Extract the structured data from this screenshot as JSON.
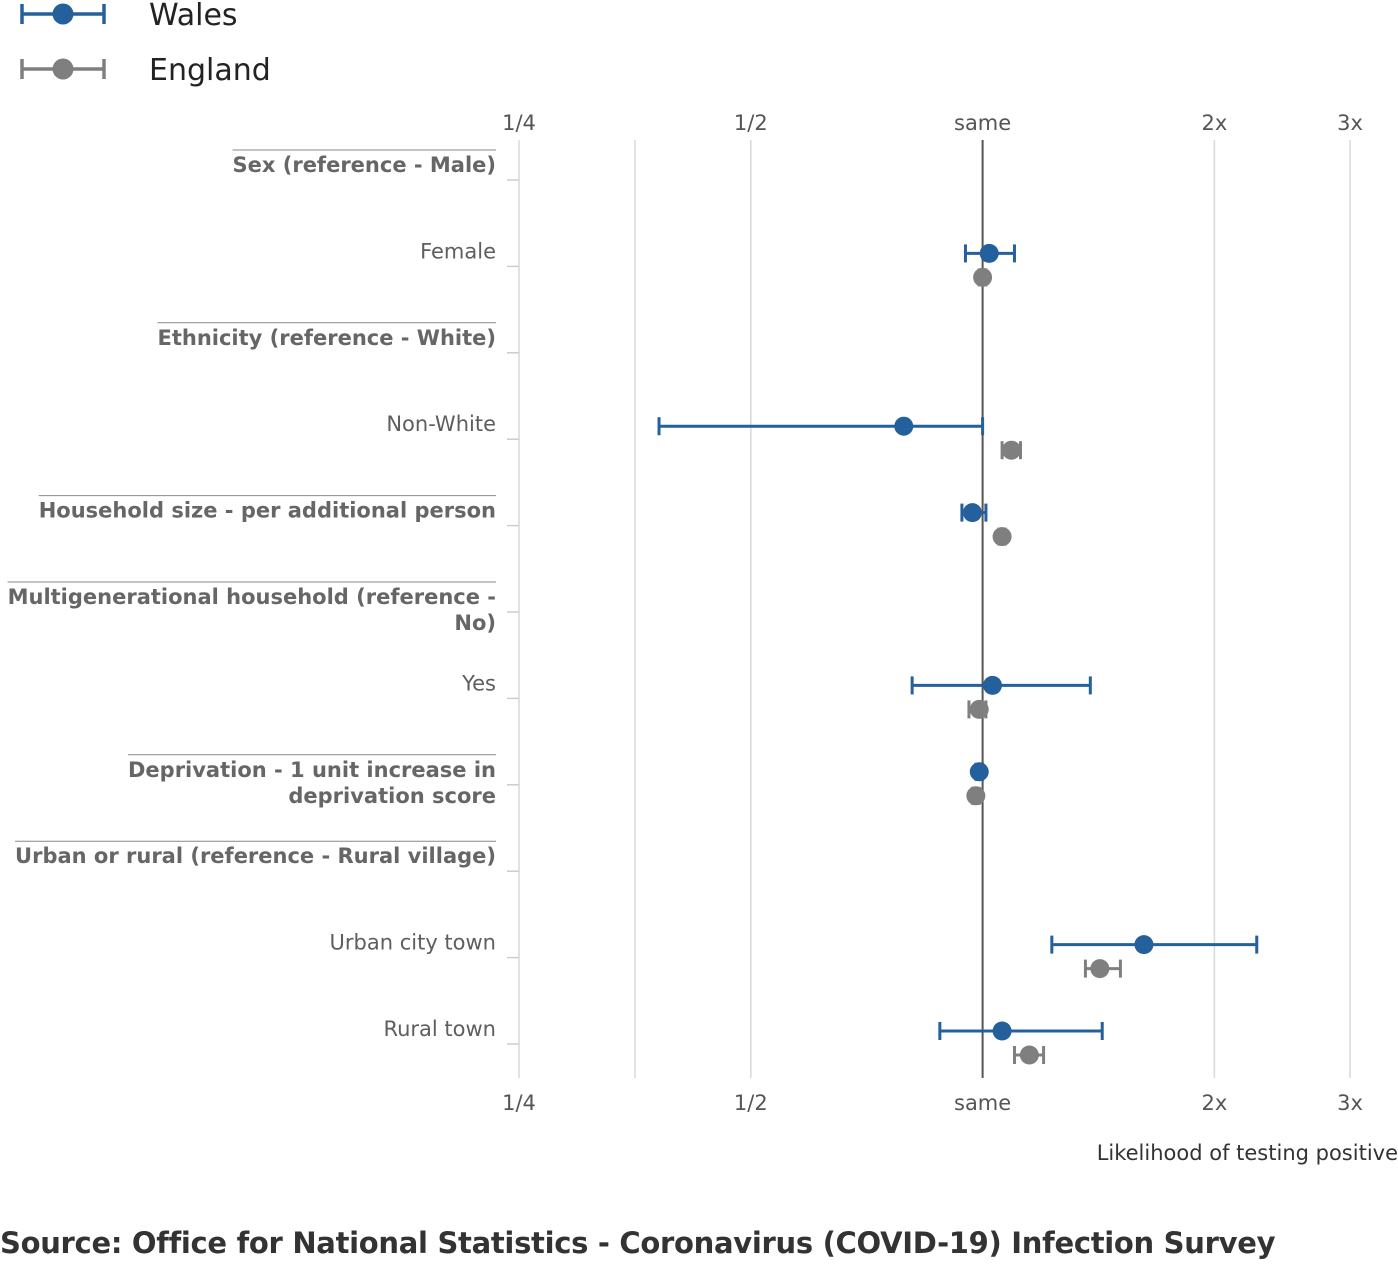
{
  "chart_data": {
    "type": "scatter",
    "scale": "log2",
    "xlim": [
      0.25,
      3
    ],
    "x_ticks": [
      {
        "value": 0.25,
        "label": "1/4"
      },
      {
        "value": 0.3536,
        "label": ""
      },
      {
        "value": 0.5,
        "label": "1/2"
      },
      {
        "value": 1,
        "label": "same"
      },
      {
        "value": 2,
        "label": "2x"
      },
      {
        "value": 3,
        "label": "3x"
      }
    ],
    "xlabel": "Likelihood of testing positive",
    "reference_value": 1,
    "legend": {
      "placement": "top-left"
    },
    "series": [
      {
        "name": "Wales",
        "color": "#24609b"
      },
      {
        "name": "England",
        "color": "#7f7f7f"
      }
    ],
    "categories": [
      {
        "label": "Sex (reference - Male)",
        "heading": true,
        "values": {}
      },
      {
        "label": "Female",
        "heading": false,
        "values": {
          "Wales": {
            "est": 1.02,
            "lo": 0.95,
            "hi": 1.1
          },
          "England": {
            "est": 1.0,
            "lo": 0.99,
            "hi": 1.01
          }
        }
      },
      {
        "label": "Ethnicity (reference - White)",
        "heading": true,
        "values": {}
      },
      {
        "label": "Non-White",
        "heading": false,
        "values": {
          "Wales": {
            "est": 0.79,
            "lo": 0.38,
            "hi": 1.0
          },
          "England": {
            "est": 1.09,
            "lo": 1.06,
            "hi": 1.12
          }
        }
      },
      {
        "label": "Household size - per additional person",
        "heading": true,
        "values": {
          "Wales": {
            "est": 0.97,
            "lo": 0.94,
            "hi": 1.01
          },
          "England": {
            "est": 1.06,
            "lo": 1.05,
            "hi": 1.07
          }
        }
      },
      {
        "label": "Multigenerational household (reference - No)",
        "heading": true,
        "values": {}
      },
      {
        "label": "Yes",
        "heading": false,
        "values": {
          "Wales": {
            "est": 1.03,
            "lo": 0.81,
            "hi": 1.38
          },
          "England": {
            "est": 0.99,
            "lo": 0.96,
            "hi": 1.01
          }
        }
      },
      {
        "label": "Deprivation - 1 unit increase in deprivation score",
        "heading": true,
        "values": {
          "Wales": {
            "est": 0.99,
            "lo": 0.98,
            "hi": 1.0
          },
          "England": {
            "est": 0.98,
            "lo": 0.97,
            "hi": 0.99
          }
        }
      },
      {
        "label": "Urban or rural (reference - Rural village)",
        "heading": true,
        "values": {}
      },
      {
        "label": "Urban city town",
        "heading": false,
        "values": {
          "Wales": {
            "est": 1.62,
            "lo": 1.23,
            "hi": 2.27
          },
          "England": {
            "est": 1.42,
            "lo": 1.36,
            "hi": 1.51
          }
        }
      },
      {
        "label": "Rural town",
        "heading": false,
        "values": {
          "Wales": {
            "est": 1.06,
            "lo": 0.88,
            "hi": 1.43
          },
          "England": {
            "est": 1.15,
            "lo": 1.1,
            "hi": 1.2
          }
        }
      }
    ]
  },
  "footer": {
    "source": "Source: Office for National Statistics - Coronavirus (COVID-19) Infection Survey"
  }
}
